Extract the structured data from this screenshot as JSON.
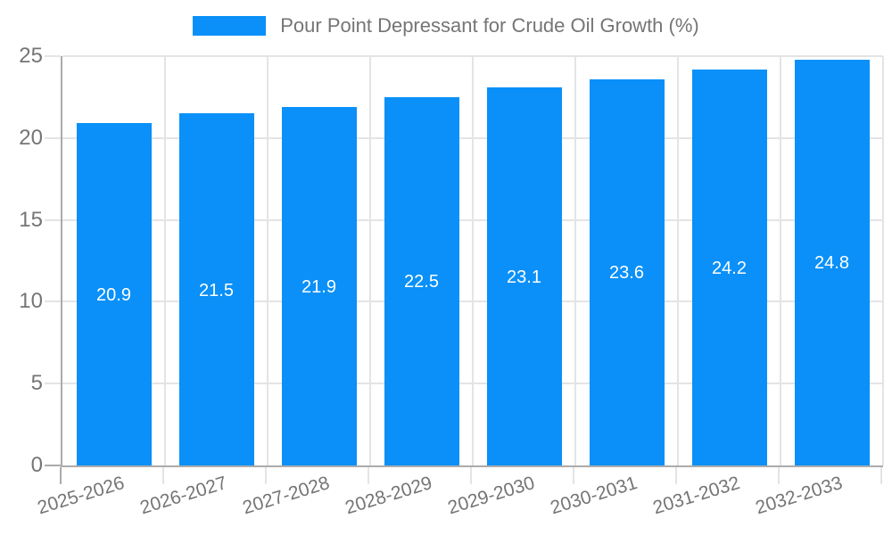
{
  "legend": {
    "label": "Pour Point Depressant for Crude Oil Growth (%)"
  },
  "chart_data": {
    "type": "bar",
    "title": "Pour Point Depressant for Crude Oil Growth (%)",
    "categories": [
      "2025-2026",
      "2026-2027",
      "2027-2028",
      "2028-2029",
      "2029-2030",
      "2030-2031",
      "2031-2032",
      "2032-2033"
    ],
    "values": [
      20.9,
      21.5,
      21.9,
      22.5,
      23.1,
      23.6,
      24.2,
      24.8
    ],
    "value_labels": [
      "20.9",
      "21.5",
      "21.9",
      "22.5",
      "23.1",
      "23.6",
      "24.2",
      "24.8"
    ],
    "xlabel": "",
    "ylabel": "",
    "ylim": [
      0,
      25
    ],
    "yticks": [
      0,
      5,
      10,
      15,
      20,
      25
    ],
    "grid": true,
    "legend_position": "top-center",
    "colors": {
      "bar": "#0a90f8",
      "value_label": "#ffffff",
      "axis": "#ababab",
      "gridline": "#e4e4e4",
      "tick_text": "#757575"
    }
  }
}
